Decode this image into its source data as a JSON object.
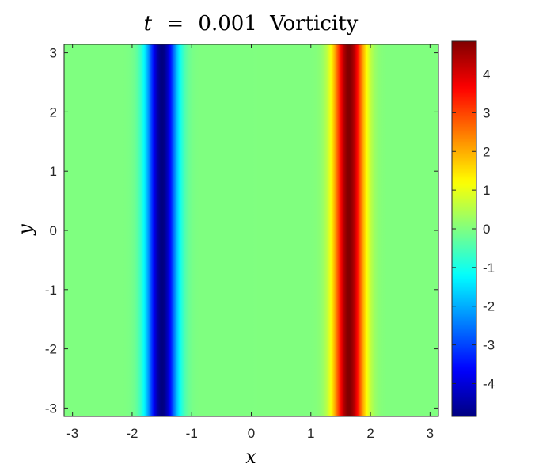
{
  "chart_data": {
    "type": "heatmap",
    "title": {
      "variable": "t",
      "operator": "=",
      "value": "0.001",
      "label": "Vorticity"
    },
    "xlabel": "x",
    "ylabel": "y",
    "xlim": [
      -3.14159,
      3.14159
    ],
    "ylim": [
      -3.14159,
      3.14159
    ],
    "xticks": [
      -3,
      -2,
      -1,
      0,
      1,
      2,
      3
    ],
    "xtick_labels": [
      "-3",
      "-2",
      "-1",
      "0",
      "1",
      "2",
      "3"
    ],
    "yticks": [
      3,
      2,
      1,
      0,
      -1,
      -2,
      -3
    ],
    "ytick_labels": [
      "3",
      "2",
      "1",
      "0",
      "-1",
      "-2",
      "-3"
    ],
    "colormap": "jet",
    "colorbar": {
      "range": [
        -4.85,
        4.85
      ],
      "ticks": [
        4,
        3,
        2,
        1,
        0,
        -1,
        -2,
        -3,
        -4
      ],
      "tick_labels": [
        "4",
        "3",
        "2",
        "1",
        "0",
        "-1",
        "-2",
        "-3",
        "-4"
      ]
    },
    "field": {
      "description_of_structure": "vorticity varies only along x; uniform in y",
      "bands": [
        {
          "center_x": -1.5,
          "width": 0.18,
          "peak": -4.85
        },
        {
          "center_x": 1.64,
          "width": 0.18,
          "peak": 4.85
        }
      ]
    },
    "grid": false,
    "legend": "colorbar-right"
  }
}
